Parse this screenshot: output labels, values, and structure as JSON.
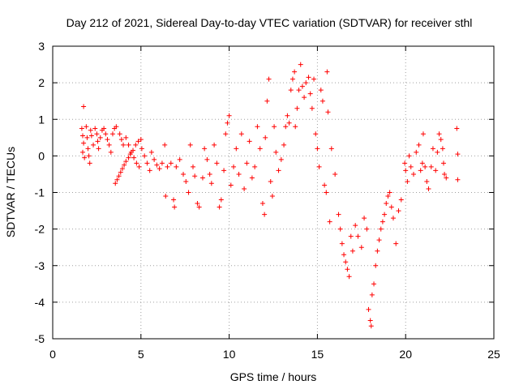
{
  "chart_data": {
    "type": "scatter",
    "title": "Day 212 of 2021, Sidereal Day-to-day VTEC variation (SDTVAR) for receiver sthl",
    "xlabel": "GPS time / hours",
    "ylabel": "SDTVAR / TECUs",
    "xlim": [
      0,
      25
    ],
    "ylim": [
      -5,
      3
    ],
    "xticks": [
      0,
      5,
      10,
      15,
      20,
      25
    ],
    "yticks": [
      -5,
      -4,
      -3,
      -2,
      -1,
      0,
      1,
      2,
      3
    ],
    "grid": true,
    "marker": "+",
    "color": "#ff0000",
    "series": [
      {
        "name": "sthl",
        "points": [
          [
            1.65,
            0.75
          ],
          [
            1.7,
            0.55
          ],
          [
            1.75,
            0.35
          ],
          [
            1.7,
            0.1
          ],
          [
            1.8,
            -0.05
          ],
          [
            1.75,
            1.35
          ],
          [
            1.9,
            0.8
          ],
          [
            1.95,
            0.5
          ],
          [
            2.0,
            0.2
          ],
          [
            2.05,
            0.0
          ],
          [
            2.1,
            -0.2
          ],
          [
            2.15,
            0.7
          ],
          [
            2.2,
            0.55
          ],
          [
            2.3,
            0.3
          ],
          [
            2.4,
            0.75
          ],
          [
            2.5,
            0.6
          ],
          [
            2.55,
            0.4
          ],
          [
            2.6,
            0.2
          ],
          [
            2.7,
            0.5
          ],
          [
            2.8,
            0.7
          ],
          [
            2.9,
            0.75
          ],
          [
            3.0,
            0.6
          ],
          [
            3.1,
            0.45
          ],
          [
            3.2,
            0.3
          ],
          [
            3.3,
            0.1
          ],
          [
            3.4,
            0.6
          ],
          [
            3.5,
            0.75
          ],
          [
            3.6,
            0.8
          ],
          [
            3.55,
            -0.75
          ],
          [
            3.65,
            -0.65
          ],
          [
            3.75,
            -0.55
          ],
          [
            3.85,
            -0.45
          ],
          [
            3.95,
            -0.35
          ],
          [
            4.05,
            -0.25
          ],
          [
            4.15,
            -0.15
          ],
          [
            4.3,
            -0.05
          ],
          [
            4.4,
            0.05
          ],
          [
            4.55,
            0.15
          ],
          [
            4.7,
            0.3
          ],
          [
            4.85,
            0.4
          ],
          [
            5.0,
            0.45
          ],
          [
            3.8,
            0.6
          ],
          [
            3.9,
            0.45
          ],
          [
            4.0,
            0.3
          ],
          [
            4.15,
            0.5
          ],
          [
            4.3,
            0.3
          ],
          [
            4.45,
            0.1
          ],
          [
            4.6,
            -0.05
          ],
          [
            4.75,
            -0.2
          ],
          [
            4.9,
            -0.3
          ],
          [
            5.05,
            0.2
          ],
          [
            5.2,
            0.0
          ],
          [
            5.35,
            -0.2
          ],
          [
            5.5,
            -0.4
          ],
          [
            5.6,
            0.1
          ],
          [
            5.75,
            -0.1
          ],
          [
            5.9,
            -0.25
          ],
          [
            6.05,
            -0.35
          ],
          [
            6.2,
            -0.2
          ],
          [
            6.35,
            0.3
          ],
          [
            6.4,
            -1.1
          ],
          [
            6.5,
            -0.3
          ],
          [
            6.7,
            -0.2
          ],
          [
            6.85,
            -1.2
          ],
          [
            6.9,
            -1.4
          ],
          [
            7.0,
            -0.3
          ],
          [
            7.2,
            -0.1
          ],
          [
            7.4,
            -0.5
          ],
          [
            7.55,
            -0.7
          ],
          [
            7.7,
            -1.0
          ],
          [
            7.8,
            0.3
          ],
          [
            7.95,
            -0.3
          ],
          [
            8.05,
            -0.55
          ],
          [
            8.2,
            -1.3
          ],
          [
            8.3,
            -1.4
          ],
          [
            8.5,
            -0.6
          ],
          [
            8.6,
            0.2
          ],
          [
            8.75,
            -0.1
          ],
          [
            8.9,
            -0.5
          ],
          [
            9.0,
            -0.75
          ],
          [
            9.15,
            0.3
          ],
          [
            9.3,
            -0.2
          ],
          [
            9.45,
            -1.4
          ],
          [
            9.55,
            -1.2
          ],
          [
            9.7,
            -0.4
          ],
          [
            9.8,
            0.6
          ],
          [
            9.9,
            0.9
          ],
          [
            10.0,
            1.1
          ],
          [
            10.1,
            -0.8
          ],
          [
            10.25,
            -0.3
          ],
          [
            10.4,
            0.2
          ],
          [
            10.55,
            -0.5
          ],
          [
            10.7,
            0.6
          ],
          [
            10.85,
            -0.9
          ],
          [
            11.0,
            -0.2
          ],
          [
            11.15,
            0.4
          ],
          [
            11.3,
            -0.6
          ],
          [
            11.45,
            -0.3
          ],
          [
            11.6,
            0.8
          ],
          [
            11.75,
            0.2
          ],
          [
            11.9,
            -1.3
          ],
          [
            12.0,
            -1.6
          ],
          [
            12.05,
            0.5
          ],
          [
            12.15,
            1.5
          ],
          [
            12.25,
            2.1
          ],
          [
            12.35,
            -0.7
          ],
          [
            12.45,
            -1.1
          ],
          [
            12.55,
            0.8
          ],
          [
            12.65,
            0.1
          ],
          [
            12.8,
            -0.4
          ],
          [
            12.95,
            -0.1
          ],
          [
            13.1,
            0.3
          ],
          [
            13.2,
            0.8
          ],
          [
            13.3,
            1.1
          ],
          [
            13.4,
            0.9
          ],
          [
            13.5,
            1.8
          ],
          [
            13.6,
            2.1
          ],
          [
            13.7,
            2.3
          ],
          [
            13.75,
            0.8
          ],
          [
            13.85,
            1.3
          ],
          [
            13.95,
            1.8
          ],
          [
            14.05,
            2.5
          ],
          [
            14.15,
            1.9
          ],
          [
            14.25,
            1.6
          ],
          [
            14.35,
            2.0
          ],
          [
            14.5,
            2.15
          ],
          [
            14.6,
            1.7
          ],
          [
            14.7,
            1.3
          ],
          [
            14.8,
            2.1
          ],
          [
            14.9,
            0.6
          ],
          [
            15.0,
            0.2
          ],
          [
            15.1,
            -0.3
          ],
          [
            15.2,
            1.8
          ],
          [
            15.3,
            1.5
          ],
          [
            15.4,
            -0.8
          ],
          [
            15.5,
            -1.0
          ],
          [
            15.55,
            2.3
          ],
          [
            15.6,
            1.2
          ],
          [
            15.7,
            -1.8
          ],
          [
            15.8,
            0.2
          ],
          [
            16.0,
            -0.5
          ],
          [
            16.2,
            -1.6
          ],
          [
            16.3,
            -2.0
          ],
          [
            16.4,
            -2.4
          ],
          [
            16.5,
            -2.7
          ],
          [
            16.6,
            -2.9
          ],
          [
            16.7,
            -3.1
          ],
          [
            16.8,
            -3.3
          ],
          [
            16.9,
            -2.2
          ],
          [
            17.0,
            -2.6
          ],
          [
            17.15,
            -1.9
          ],
          [
            17.3,
            -2.2
          ],
          [
            17.5,
            -2.5
          ],
          [
            17.65,
            -1.7
          ],
          [
            17.8,
            -2.0
          ],
          [
            17.9,
            -4.2
          ],
          [
            18.0,
            -4.5
          ],
          [
            18.05,
            -4.65
          ],
          [
            18.1,
            -3.8
          ],
          [
            18.2,
            -3.5
          ],
          [
            18.3,
            -3.0
          ],
          [
            18.4,
            -2.6
          ],
          [
            18.5,
            -2.3
          ],
          [
            18.6,
            -2.0
          ],
          [
            18.7,
            -1.8
          ],
          [
            18.8,
            -1.6
          ],
          [
            18.9,
            -1.3
          ],
          [
            19.0,
            -1.1
          ],
          [
            19.1,
            -1.0
          ],
          [
            19.2,
            -1.4
          ],
          [
            19.3,
            -1.7
          ],
          [
            19.45,
            -2.4
          ],
          [
            19.6,
            -1.5
          ],
          [
            19.75,
            -1.2
          ],
          [
            19.95,
            -0.2
          ],
          [
            20.0,
            -0.4
          ],
          [
            20.1,
            -0.7
          ],
          [
            20.2,
            0.0
          ],
          [
            20.3,
            -0.3
          ],
          [
            20.45,
            -0.5
          ],
          [
            20.6,
            0.1
          ],
          [
            20.75,
            0.3
          ],
          [
            20.85,
            -0.4
          ],
          [
            20.95,
            -0.2
          ],
          [
            21.0,
            0.6
          ],
          [
            21.1,
            -0.3
          ],
          [
            21.2,
            -0.7
          ],
          [
            21.3,
            -0.9
          ],
          [
            21.45,
            -0.3
          ],
          [
            21.55,
            0.2
          ],
          [
            21.7,
            -0.4
          ],
          [
            21.8,
            0.1
          ],
          [
            21.9,
            0.6
          ],
          [
            22.0,
            0.45
          ],
          [
            22.1,
            0.2
          ],
          [
            22.15,
            -0.2
          ],
          [
            22.2,
            -0.5
          ],
          [
            22.3,
            -0.6
          ],
          [
            22.9,
            0.75
          ],
          [
            22.95,
            0.05
          ],
          [
            22.95,
            -0.65
          ]
        ]
      }
    ]
  }
}
